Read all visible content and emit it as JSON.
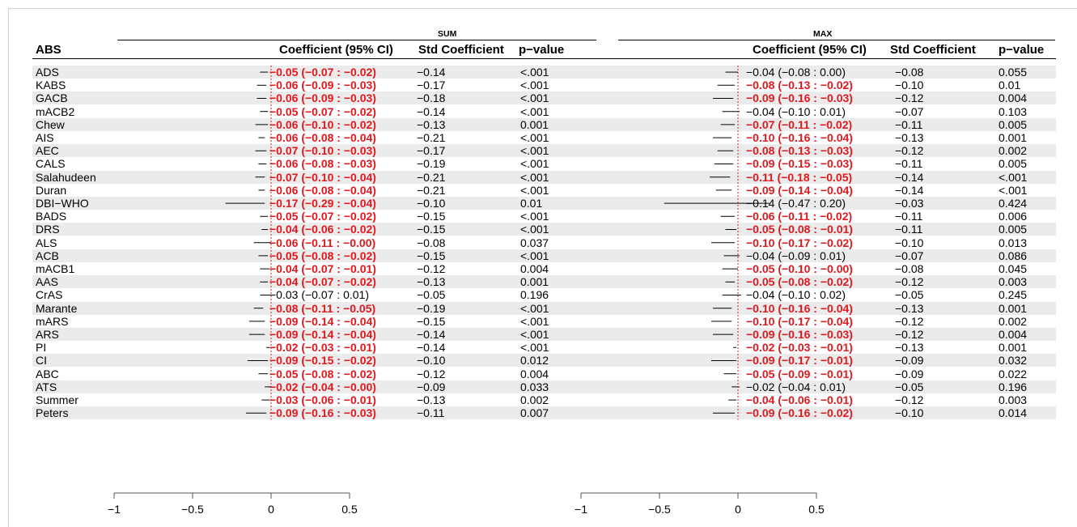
{
  "headers": {
    "row_label": "ABS",
    "groups": [
      "SUM",
      "MAX"
    ],
    "columns": [
      "Coefficient (95% CI)",
      "Std Coefficient",
      "p−value"
    ]
  },
  "colors": {
    "significant": "#e0191f",
    "stripe": "#ebebeb",
    "reference_line": "#e0191f"
  },
  "chart_data": {
    "type": "table",
    "forest_axis": {
      "range": [
        -1,
        0.75
      ],
      "ticks": [
        -1,
        -0.5,
        0,
        0.5
      ],
      "tick_labels": [
        "−1",
        "−0.5",
        "0",
        "0.5"
      ],
      "reference_value": 0
    },
    "rows": [
      {
        "label": "ADS",
        "sum": {
          "coef": -0.05,
          "lo": -0.07,
          "hi": -0.02,
          "ci": "−0.05 (−0.07 : −0.02)",
          "std": "−0.14",
          "p": "<.001",
          "sig": true
        },
        "max": {
          "coef": -0.04,
          "lo": -0.08,
          "hi": 0.0,
          "ci": "−0.04 (−0.08 : 0.00)",
          "std": "−0.08",
          "p": "0.055",
          "sig": false
        }
      },
      {
        "label": "KABS",
        "sum": {
          "coef": -0.06,
          "lo": -0.09,
          "hi": -0.03,
          "ci": "−0.06 (−0.09 : −0.03)",
          "std": "−0.17",
          "p": "<.001",
          "sig": true
        },
        "max": {
          "coef": -0.08,
          "lo": -0.13,
          "hi": -0.02,
          "ci": "−0.08 (−0.13 : −0.02)",
          "std": "−0.10",
          "p": "0.01",
          "sig": true
        }
      },
      {
        "label": "GACB",
        "sum": {
          "coef": -0.06,
          "lo": -0.09,
          "hi": -0.03,
          "ci": "−0.06 (−0.09 : −0.03)",
          "std": "−0.18",
          "p": "<.001",
          "sig": true
        },
        "max": {
          "coef": -0.09,
          "lo": -0.16,
          "hi": -0.03,
          "ci": "−0.09 (−0.16 : −0.03)",
          "std": "−0.12",
          "p": "0.004",
          "sig": true
        }
      },
      {
        "label": "mACB2",
        "sum": {
          "coef": -0.05,
          "lo": -0.07,
          "hi": -0.02,
          "ci": "−0.05 (−0.07 : −0.02)",
          "std": "−0.14",
          "p": "<.001",
          "sig": true
        },
        "max": {
          "coef": -0.04,
          "lo": -0.1,
          "hi": 0.01,
          "ci": "−0.04 (−0.10 : 0.01)",
          "std": "−0.07",
          "p": "0.103",
          "sig": false
        }
      },
      {
        "label": "Chew",
        "sum": {
          "coef": -0.06,
          "lo": -0.1,
          "hi": -0.02,
          "ci": "−0.06 (−0.10 : −0.02)",
          "std": "−0.13",
          "p": "0.001",
          "sig": true
        },
        "max": {
          "coef": -0.07,
          "lo": -0.11,
          "hi": -0.02,
          "ci": "−0.07 (−0.11 : −0.02)",
          "std": "−0.11",
          "p": "0.005",
          "sig": true
        }
      },
      {
        "label": "AIS",
        "sum": {
          "coef": -0.06,
          "lo": -0.08,
          "hi": -0.04,
          "ci": "−0.06 (−0.08 : −0.04)",
          "std": "−0.21",
          "p": "<.001",
          "sig": true
        },
        "max": {
          "coef": -0.1,
          "lo": -0.16,
          "hi": -0.04,
          "ci": "−0.10 (−0.16 : −0.04)",
          "std": "−0.13",
          "p": "0.001",
          "sig": true
        }
      },
      {
        "label": "AEC",
        "sum": {
          "coef": -0.07,
          "lo": -0.1,
          "hi": -0.03,
          "ci": "−0.07 (−0.10 : −0.03)",
          "std": "−0.17",
          "p": "<.001",
          "sig": true
        },
        "max": {
          "coef": -0.08,
          "lo": -0.13,
          "hi": -0.03,
          "ci": "−0.08 (−0.13 : −0.03)",
          "std": "−0.12",
          "p": "0.002",
          "sig": true
        }
      },
      {
        "label": "CALS",
        "sum": {
          "coef": -0.06,
          "lo": -0.08,
          "hi": -0.03,
          "ci": "−0.06 (−0.08 : −0.03)",
          "std": "−0.19",
          "p": "<.001",
          "sig": true
        },
        "max": {
          "coef": -0.09,
          "lo": -0.15,
          "hi": -0.03,
          "ci": "−0.09 (−0.15 : −0.03)",
          "std": "−0.11",
          "p": "0.005",
          "sig": true
        }
      },
      {
        "label": "Salahudeen",
        "sum": {
          "coef": -0.07,
          "lo": -0.1,
          "hi": -0.04,
          "ci": "−0.07 (−0.10 : −0.04)",
          "std": "−0.21",
          "p": "<.001",
          "sig": true
        },
        "max": {
          "coef": -0.11,
          "lo": -0.18,
          "hi": -0.05,
          "ci": "−0.11 (−0.18 : −0.05)",
          "std": "−0.14",
          "p": "<.001",
          "sig": true
        }
      },
      {
        "label": "Duran",
        "sum": {
          "coef": -0.06,
          "lo": -0.08,
          "hi": -0.04,
          "ci": "−0.06 (−0.08 : −0.04)",
          "std": "−0.21",
          "p": "<.001",
          "sig": true
        },
        "max": {
          "coef": -0.09,
          "lo": -0.14,
          "hi": -0.04,
          "ci": "−0.09 (−0.14 : −0.04)",
          "std": "−0.14",
          "p": "<.001",
          "sig": true
        }
      },
      {
        "label": "DBI−WHO",
        "sum": {
          "coef": -0.17,
          "lo": -0.29,
          "hi": -0.04,
          "ci": "−0.17 (−0.29 : −0.04)",
          "std": "−0.10",
          "p": "0.01",
          "sig": true
        },
        "max": {
          "coef": -0.14,
          "lo": -0.47,
          "hi": 0.2,
          "ci": "−0.14 (−0.47 : 0.20)",
          "std": "−0.03",
          "p": "0.424",
          "sig": false
        }
      },
      {
        "label": "BADS",
        "sum": {
          "coef": -0.05,
          "lo": -0.07,
          "hi": -0.02,
          "ci": "−0.05 (−0.07 : −0.02)",
          "std": "−0.15",
          "p": "<.001",
          "sig": true
        },
        "max": {
          "coef": -0.06,
          "lo": -0.11,
          "hi": -0.02,
          "ci": "−0.06 (−0.11 : −0.02)",
          "std": "−0.11",
          "p": "0.006",
          "sig": true
        }
      },
      {
        "label": "DRS",
        "sum": {
          "coef": -0.04,
          "lo": -0.06,
          "hi": -0.02,
          "ci": "−0.04 (−0.06 : −0.02)",
          "std": "−0.15",
          "p": "<.001",
          "sig": true
        },
        "max": {
          "coef": -0.05,
          "lo": -0.08,
          "hi": -0.01,
          "ci": "−0.05 (−0.08 : −0.01)",
          "std": "−0.11",
          "p": "0.005",
          "sig": true
        }
      },
      {
        "label": "ALS",
        "sum": {
          "coef": -0.06,
          "lo": -0.11,
          "hi": -0.0,
          "ci": "−0.06 (−0.11 : −0.00)",
          "std": "−0.08",
          "p": "0.037",
          "sig": true
        },
        "max": {
          "coef": -0.1,
          "lo": -0.17,
          "hi": -0.02,
          "ci": "−0.10 (−0.17 : −0.02)",
          "std": "−0.10",
          "p": "0.013",
          "sig": true
        }
      },
      {
        "label": "ACB",
        "sum": {
          "coef": -0.05,
          "lo": -0.08,
          "hi": -0.02,
          "ci": "−0.05 (−0.08 : −0.02)",
          "std": "−0.15",
          "p": "<.001",
          "sig": true
        },
        "max": {
          "coef": -0.04,
          "lo": -0.09,
          "hi": 0.01,
          "ci": "−0.04 (−0.09 : 0.01)",
          "std": "−0.07",
          "p": "0.086",
          "sig": false
        }
      },
      {
        "label": "mACB1",
        "sum": {
          "coef": -0.04,
          "lo": -0.07,
          "hi": -0.01,
          "ci": "−0.04 (−0.07 : −0.01)",
          "std": "−0.12",
          "p": "0.004",
          "sig": true
        },
        "max": {
          "coef": -0.05,
          "lo": -0.1,
          "hi": -0.0,
          "ci": "−0.05 (−0.10 : −0.00)",
          "std": "−0.08",
          "p": "0.045",
          "sig": true
        }
      },
      {
        "label": "AAS",
        "sum": {
          "coef": -0.04,
          "lo": -0.07,
          "hi": -0.02,
          "ci": "−0.04 (−0.07 : −0.02)",
          "std": "−0.13",
          "p": "0.001",
          "sig": true
        },
        "max": {
          "coef": -0.05,
          "lo": -0.08,
          "hi": -0.02,
          "ci": "−0.05 (−0.08 : −0.02)",
          "std": "−0.12",
          "p": "0.003",
          "sig": true
        }
      },
      {
        "label": "CrAS",
        "sum": {
          "coef": -0.03,
          "lo": -0.07,
          "hi": 0.01,
          "ci": "−0.03 (−0.07 : 0.01)",
          "std": "−0.05",
          "p": "0.196",
          "sig": false
        },
        "max": {
          "coef": -0.04,
          "lo": -0.1,
          "hi": 0.02,
          "ci": "−0.04 (−0.10 : 0.02)",
          "std": "−0.05",
          "p": "0.245",
          "sig": false
        }
      },
      {
        "label": "Marante",
        "sum": {
          "coef": -0.08,
          "lo": -0.11,
          "hi": -0.05,
          "ci": "−0.08 (−0.11 : −0.05)",
          "std": "−0.19",
          "p": "<.001",
          "sig": true
        },
        "max": {
          "coef": -0.1,
          "lo": -0.16,
          "hi": -0.04,
          "ci": "−0.10 (−0.16 : −0.04)",
          "std": "−0.13",
          "p": "0.001",
          "sig": true
        }
      },
      {
        "label": "mARS",
        "sum": {
          "coef": -0.09,
          "lo": -0.14,
          "hi": -0.04,
          "ci": "−0.09 (−0.14 : −0.04)",
          "std": "−0.15",
          "p": "<.001",
          "sig": true
        },
        "max": {
          "coef": -0.1,
          "lo": -0.17,
          "hi": -0.04,
          "ci": "−0.10 (−0.17 : −0.04)",
          "std": "−0.12",
          "p": "0.002",
          "sig": true
        }
      },
      {
        "label": "ARS",
        "sum": {
          "coef": -0.09,
          "lo": -0.14,
          "hi": -0.04,
          "ci": "−0.09 (−0.14 : −0.04)",
          "std": "−0.14",
          "p": "<.001",
          "sig": true
        },
        "max": {
          "coef": -0.09,
          "lo": -0.16,
          "hi": -0.03,
          "ci": "−0.09 (−0.16 : −0.03)",
          "std": "−0.12",
          "p": "0.004",
          "sig": true
        }
      },
      {
        "label": "PI",
        "sum": {
          "coef": -0.02,
          "lo": -0.03,
          "hi": -0.01,
          "ci": "−0.02 (−0.03 : −0.01)",
          "std": "−0.14",
          "p": "<.001",
          "sig": true
        },
        "max": {
          "coef": -0.02,
          "lo": -0.03,
          "hi": -0.01,
          "ci": "−0.02 (−0.03 : −0.01)",
          "std": "−0.13",
          "p": "0.001",
          "sig": true
        }
      },
      {
        "label": "CI",
        "sum": {
          "coef": -0.09,
          "lo": -0.15,
          "hi": -0.02,
          "ci": "−0.09 (−0.15 : −0.02)",
          "std": "−0.10",
          "p": "0.012",
          "sig": true
        },
        "max": {
          "coef": -0.09,
          "lo": -0.17,
          "hi": -0.01,
          "ci": "−0.09 (−0.17 : −0.01)",
          "std": "−0.09",
          "p": "0.032",
          "sig": true
        }
      },
      {
        "label": "ABC",
        "sum": {
          "coef": -0.05,
          "lo": -0.08,
          "hi": -0.02,
          "ci": "−0.05 (−0.08 : −0.02)",
          "std": "−0.12",
          "p": "0.004",
          "sig": true
        },
        "max": {
          "coef": -0.05,
          "lo": -0.09,
          "hi": -0.01,
          "ci": "−0.05 (−0.09 : −0.01)",
          "std": "−0.09",
          "p": "0.022",
          "sig": true
        }
      },
      {
        "label": "ATS",
        "sum": {
          "coef": -0.02,
          "lo": -0.04,
          "hi": -0.0,
          "ci": "−0.02 (−0.04 : −0.00)",
          "std": "−0.09",
          "p": "0.033",
          "sig": true
        },
        "max": {
          "coef": -0.02,
          "lo": -0.04,
          "hi": 0.01,
          "ci": "−0.02 (−0.04 : 0.01)",
          "std": "−0.05",
          "p": "0.196",
          "sig": false
        }
      },
      {
        "label": "Summer",
        "sum": {
          "coef": -0.03,
          "lo": -0.06,
          "hi": -0.01,
          "ci": "−0.03 (−0.06 : −0.01)",
          "std": "−0.13",
          "p": "0.002",
          "sig": true
        },
        "max": {
          "coef": -0.04,
          "lo": -0.06,
          "hi": -0.01,
          "ci": "−0.04 (−0.06 : −0.01)",
          "std": "−0.12",
          "p": "0.003",
          "sig": true
        }
      },
      {
        "label": "Peters",
        "sum": {
          "coef": -0.09,
          "lo": -0.16,
          "hi": -0.03,
          "ci": "−0.09 (−0.16 : −0.03)",
          "std": "−0.11",
          "p": "0.007",
          "sig": true
        },
        "max": {
          "coef": -0.09,
          "lo": -0.16,
          "hi": -0.02,
          "ci": "−0.09 (−0.16 : −0.02)",
          "std": "−0.10",
          "p": "0.014",
          "sig": true
        }
      }
    ]
  }
}
